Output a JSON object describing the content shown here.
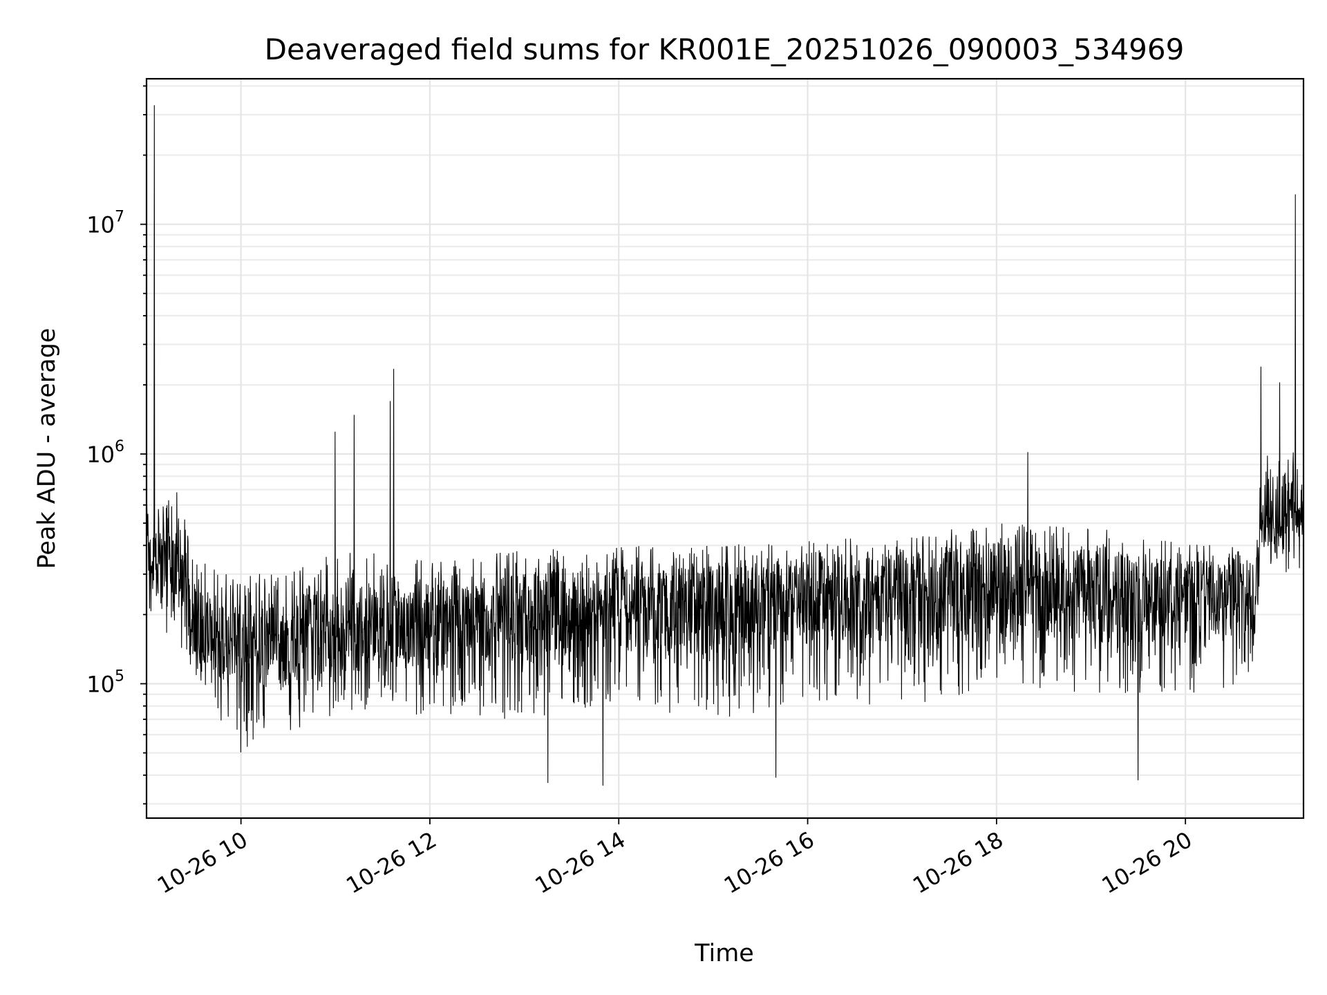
{
  "chart_data": {
    "type": "line",
    "title": "Deaveraged field sums for KR001E_20251026_090003_534969",
    "xlabel": "Time",
    "ylabel": "Peak ADU - average",
    "x_axis": {
      "kind": "time",
      "range": [
        "2025-10-26T09:00:00",
        "2025-10-26T21:15:00"
      ],
      "ticks": [
        {
          "at": "2025-10-26T10:00:00",
          "label": "10-26 10"
        },
        {
          "at": "2025-10-26T12:00:00",
          "label": "10-26 12"
        },
        {
          "at": "2025-10-26T14:00:00",
          "label": "10-26 14"
        },
        {
          "at": "2025-10-26T16:00:00",
          "label": "10-26 16"
        },
        {
          "at": "2025-10-26T18:00:00",
          "label": "10-26 18"
        },
        {
          "at": "2025-10-26T20:00:00",
          "label": "10-26 20"
        }
      ],
      "tick_label_rotation_deg": -30
    },
    "y_axis": {
      "scale": "log",
      "range": [
        26000,
        43000000
      ],
      "ticks": [
        {
          "value": 100000,
          "base": "10",
          "exp": "5"
        },
        {
          "value": 1000000,
          "base": "10",
          "exp": "6"
        },
        {
          "value": 10000000,
          "base": "10",
          "exp": "7"
        }
      ]
    },
    "grid": true,
    "legend": "none",
    "series": [
      {
        "color": "#000000",
        "envelope": [
          {
            "t": "2025-10-26T09:00:00",
            "lo": 200000,
            "hi": 600000,
            "mid": 350000
          },
          {
            "t": "2025-10-26T09:20:00",
            "lo": 150000,
            "hi": 700000,
            "mid": 300000
          },
          {
            "t": "2025-10-26T09:30:00",
            "lo": 100000,
            "hi": 350000,
            "mid": 180000
          },
          {
            "t": "2025-10-26T10:00:00",
            "lo": 50000,
            "hi": 300000,
            "mid": 150000
          },
          {
            "t": "2025-10-26T10:30:00",
            "lo": 60000,
            "hi": 320000,
            "mid": 150000
          },
          {
            "t": "2025-10-26T11:00:00",
            "lo": 70000,
            "hi": 380000,
            "mid": 170000
          },
          {
            "t": "2025-10-26T11:30:00",
            "lo": 80000,
            "hi": 380000,
            "mid": 180000
          },
          {
            "t": "2025-10-26T12:00:00",
            "lo": 70000,
            "hi": 350000,
            "mid": 180000
          },
          {
            "t": "2025-10-26T13:00:00",
            "lo": 70000,
            "hi": 380000,
            "mid": 195000
          },
          {
            "t": "2025-10-26T14:00:00",
            "lo": 80000,
            "hi": 400000,
            "mid": 205000
          },
          {
            "t": "2025-10-26T15:00:00",
            "lo": 70000,
            "hi": 400000,
            "mid": 210000
          },
          {
            "t": "2025-10-26T16:00:00",
            "lo": 80000,
            "hi": 420000,
            "mid": 235000
          },
          {
            "t": "2025-10-26T17:00:00",
            "lo": 80000,
            "hi": 440000,
            "mid": 245000
          },
          {
            "t": "2025-10-26T18:00:00",
            "lo": 90000,
            "hi": 500000,
            "mid": 255000
          },
          {
            "t": "2025-10-26T19:00:00",
            "lo": 90000,
            "hi": 480000,
            "mid": 250000
          },
          {
            "t": "2025-10-26T20:00:00",
            "lo": 90000,
            "hi": 420000,
            "mid": 230000
          },
          {
            "t": "2025-10-26T20:45:00",
            "lo": 100000,
            "hi": 400000,
            "mid": 230000
          },
          {
            "t": "2025-10-26T20:48:00",
            "lo": 300000,
            "hi": 1100000,
            "mid": 550000
          },
          {
            "t": "2025-10-26T21:15:00",
            "lo": 300000,
            "hi": 1000000,
            "mid": 560000
          }
        ],
        "spikes": [
          {
            "t": "2025-10-26T09:05:00",
            "y": 33000000
          },
          {
            "t": "2025-10-26T11:00:00",
            "y": 1250000
          },
          {
            "t": "2025-10-26T11:12:00",
            "y": 1480000
          },
          {
            "t": "2025-10-26T11:35:00",
            "y": 1700000
          },
          {
            "t": "2025-10-26T11:37:00",
            "y": 2350000
          },
          {
            "t": "2025-10-26T18:20:00",
            "y": 1020000
          },
          {
            "t": "2025-10-26T20:48:00",
            "y": 2400000
          },
          {
            "t": "2025-10-26T21:00:00",
            "y": 2050000
          },
          {
            "t": "2025-10-26T21:10:00",
            "y": 13500000
          },
          {
            "t": "2025-10-26T13:15:00",
            "y": 37000
          },
          {
            "t": "2025-10-26T13:50:00",
            "y": 36000
          },
          {
            "t": "2025-10-26T15:40:00",
            "y": 39000
          },
          {
            "t": "2025-10-26T19:30:00",
            "y": 38000
          }
        ]
      }
    ]
  }
}
